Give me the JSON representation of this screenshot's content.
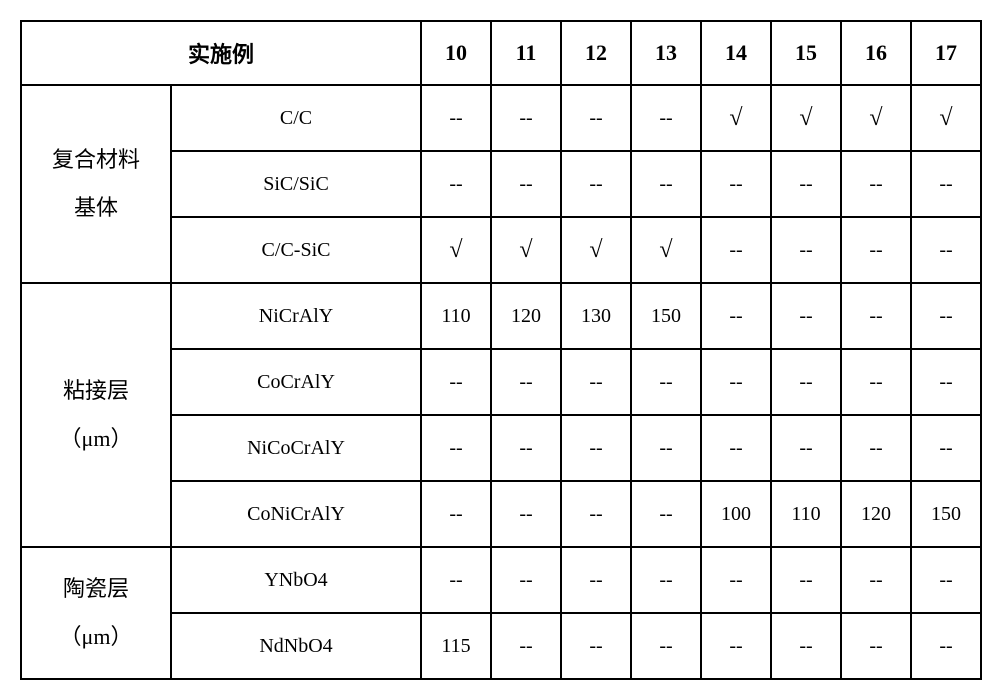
{
  "header": {
    "experiment_label": "实施例",
    "col_numbers": [
      "10",
      "11",
      "12",
      "13",
      "14",
      "15",
      "16",
      "17"
    ]
  },
  "groups": [
    {
      "label_line1": "复合材料",
      "label_line2": "基体",
      "rows": [
        {
          "sub": "C/C",
          "cells": [
            "--",
            "--",
            "--",
            "--",
            "√",
            "√",
            "√",
            "√"
          ]
        },
        {
          "sub": "SiC/SiC",
          "cells": [
            "--",
            "--",
            "--",
            "--",
            "--",
            "--",
            "--",
            "--"
          ]
        },
        {
          "sub": "C/C-SiC",
          "cells": [
            "√",
            "√",
            "√",
            "√",
            "--",
            "--",
            "--",
            "--"
          ]
        }
      ]
    },
    {
      "label_line1": "粘接层",
      "label_line2": "（μm）",
      "rows": [
        {
          "sub": "NiCrAlY",
          "cells": [
            "110",
            "120",
            "130",
            "150",
            "--",
            "--",
            "--",
            "--"
          ]
        },
        {
          "sub": "CoCrAlY",
          "cells": [
            "--",
            "--",
            "--",
            "--",
            "--",
            "--",
            "--",
            "--"
          ]
        },
        {
          "sub": "NiCoCrAlY",
          "cells": [
            "--",
            "--",
            "--",
            "--",
            "--",
            "--",
            "--",
            "--"
          ]
        },
        {
          "sub": "CoNiCrAlY",
          "cells": [
            "--",
            "--",
            "--",
            "--",
            "100",
            "110",
            "120",
            "150"
          ]
        }
      ]
    },
    {
      "label_line1": "陶瓷层",
      "label_line2": "（μm）",
      "rows": [
        {
          "sub": "YNbO4",
          "cells": [
            "--",
            "--",
            "--",
            "--",
            "--",
            "--",
            "--",
            "--"
          ]
        },
        {
          "sub": "NdNbO4",
          "cells": [
            "115",
            "--",
            "--",
            "--",
            "--",
            "--",
            "--",
            "--"
          ]
        }
      ]
    }
  ],
  "style": {
    "font_family_cjk": "SimSun",
    "font_family_latin": "Times New Roman",
    "border_color": "#000000",
    "background": "#ffffff",
    "header_fontsize": 22,
    "cell_fontsize": 20,
    "checkmark": "√",
    "dash": "--"
  }
}
